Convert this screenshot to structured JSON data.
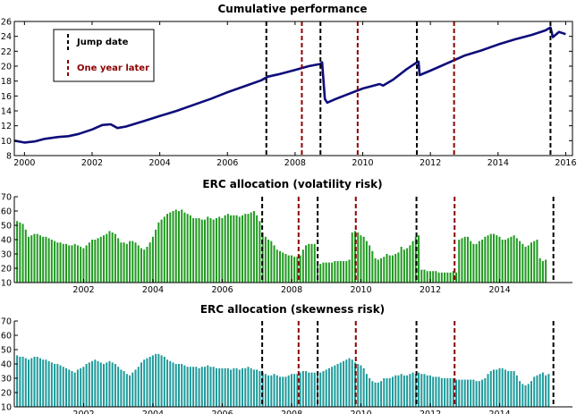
{
  "colors": {
    "performance_line": "#0d0d7a",
    "volatility_bars": "#1f9a1f",
    "skewness_bars": "#1d9a9a",
    "jump_line": "#000000",
    "later_line": "#8b0000"
  },
  "legend": {
    "jump_label": "Jump date",
    "later_label": "One year later"
  },
  "chart_data": [
    {
      "type": "line",
      "title": "Cumulative performance",
      "xlim": [
        1999.7,
        2016.2
      ],
      "ylim": [
        8,
        26
      ],
      "x_ticks": [
        2000,
        2002,
        2004,
        2006,
        2008,
        2010,
        2012,
        2014,
        2016
      ],
      "y_ticks": [
        8,
        10,
        12,
        14,
        16,
        18,
        20,
        22,
        24,
        26
      ],
      "grid": false,
      "legend_position": "top-left",
      "series": [
        {
          "points": [
            [
              1999.7,
              10.0
            ],
            [
              2000.0,
              9.75
            ],
            [
              2000.3,
              9.9
            ],
            [
              2000.6,
              10.25
            ],
            [
              2001.0,
              10.5
            ],
            [
              2001.3,
              10.6
            ],
            [
              2001.6,
              10.9
            ],
            [
              2002.0,
              11.5
            ],
            [
              2002.3,
              12.1
            ],
            [
              2002.55,
              12.2
            ],
            [
              2002.75,
              11.7
            ],
            [
              2003.0,
              11.9
            ],
            [
              2003.5,
              12.6
            ],
            [
              2004.0,
              13.3
            ],
            [
              2004.5,
              14.0
            ],
            [
              2005.0,
              14.8
            ],
            [
              2005.5,
              15.6
            ],
            [
              2006.0,
              16.5
            ],
            [
              2006.5,
              17.3
            ],
            [
              2007.0,
              18.1
            ],
            [
              2007.2,
              18.6
            ],
            [
              2007.5,
              18.9
            ],
            [
              2008.0,
              19.5
            ],
            [
              2008.4,
              20.0
            ],
            [
              2008.75,
              20.3
            ],
            [
              2008.8,
              20.5
            ],
            [
              2008.88,
              15.6
            ],
            [
              2008.95,
              15.1
            ],
            [
              2009.2,
              15.6
            ],
            [
              2009.6,
              16.3
            ],
            [
              2010.0,
              17.0
            ],
            [
              2010.5,
              17.6
            ],
            [
              2010.6,
              17.4
            ],
            [
              2010.9,
              18.2
            ],
            [
              2011.3,
              19.6
            ],
            [
              2011.6,
              20.5
            ],
            [
              2011.65,
              20.6
            ],
            [
              2011.68,
              18.8
            ],
            [
              2012.0,
              19.4
            ],
            [
              2012.5,
              20.4
            ],
            [
              2013.0,
              21.4
            ],
            [
              2013.5,
              22.1
            ],
            [
              2014.0,
              22.9
            ],
            [
              2014.5,
              23.6
            ],
            [
              2015.0,
              24.2
            ],
            [
              2015.4,
              24.8
            ],
            [
              2015.55,
              25.2
            ],
            [
              2015.62,
              23.9
            ],
            [
              2015.8,
              24.6
            ],
            [
              2016.0,
              24.3
            ]
          ]
        }
      ],
      "vlines": {
        "jump_dates": [
          2007.15,
          2008.75,
          2011.6,
          2015.55
        ],
        "one_year_later": [
          2008.2,
          2009.85,
          2012.7
        ]
      }
    },
    {
      "type": "bar",
      "title": "ERC allocation (volatility risk)",
      "xlim": [
        2000.0,
        2016.1
      ],
      "ylim": [
        10,
        70
      ],
      "x_ticks": [
        2002,
        2004,
        2006,
        2008,
        2010,
        2012,
        2014
      ],
      "y_ticks": [
        10,
        20,
        30,
        40,
        50,
        60,
        70
      ],
      "grid": false,
      "start": 2000.08,
      "step": 0.08333,
      "values": [
        53,
        52,
        51,
        47,
        42,
        43,
        44,
        44,
        43,
        42,
        42,
        41,
        40,
        39,
        38,
        38,
        37,
        37,
        36,
        36,
        37,
        36,
        35,
        34,
        36,
        38,
        40,
        40,
        41,
        42,
        43,
        44,
        46,
        45,
        44,
        41,
        38,
        38,
        37,
        39,
        39,
        38,
        36,
        34,
        33,
        35,
        38,
        42,
        47,
        52,
        54,
        56,
        58,
        59,
        60,
        61,
        60,
        61,
        59,
        58,
        57,
        55,
        55,
        55,
        54,
        54,
        56,
        55,
        54,
        55,
        56,
        55,
        57,
        58,
        57,
        57,
        57,
        56,
        57,
        58,
        58,
        59,
        60,
        57,
        53,
        45,
        42,
        40,
        39,
        36,
        33,
        32,
        31,
        30,
        29,
        29,
        28,
        28,
        29,
        33,
        36,
        37,
        37,
        37,
        24,
        23,
        24,
        24,
        24,
        24,
        25,
        25,
        25,
        25,
        25,
        26,
        45,
        46,
        45,
        43,
        42,
        39,
        36,
        32,
        27,
        26,
        27,
        28,
        30,
        29,
        29,
        30,
        31,
        35,
        33,
        34,
        36,
        39,
        42,
        43,
        19,
        19,
        18,
        18,
        18,
        18,
        17,
        17,
        17,
        17,
        17,
        18,
        17,
        40,
        41,
        42,
        42,
        39,
        37,
        37,
        39,
        40,
        42,
        43,
        44,
        44,
        43,
        42,
        40,
        40,
        41,
        42,
        43,
        41,
        39,
        37,
        35,
        36,
        38,
        39,
        40,
        27,
        25,
        26
      ]
    },
    {
      "type": "bar",
      "title": "ERC allocation (skewness risk)",
      "xlim": [
        2000.0,
        2016.1
      ],
      "ylim": [
        10,
        70
      ],
      "x_ticks": [
        2002,
        2004,
        2006,
        2008,
        2010,
        2012,
        2014
      ],
      "y_ticks": [
        10,
        20,
        30,
        40,
        50,
        60,
        70
      ],
      "grid": false,
      "start": 2000.08,
      "step": 0.08333,
      "values": [
        46,
        45,
        45,
        44,
        43,
        44,
        45,
        45,
        44,
        43,
        43,
        42,
        41,
        40,
        40,
        39,
        38,
        37,
        36,
        35,
        34,
        36,
        37,
        38,
        40,
        41,
        42,
        43,
        42,
        41,
        40,
        41,
        42,
        41,
        40,
        38,
        36,
        35,
        33,
        32,
        34,
        36,
        38,
        41,
        43,
        44,
        45,
        46,
        47,
        47,
        46,
        45,
        43,
        42,
        41,
        40,
        40,
        40,
        39,
        38,
        38,
        38,
        38,
        37,
        38,
        38,
        39,
        38,
        38,
        37,
        37,
        37,
        37,
        37,
        36,
        37,
        37,
        36,
        37,
        37,
        38,
        37,
        36,
        36,
        35,
        34,
        33,
        32,
        32,
        33,
        32,
        31,
        31,
        31,
        32,
        33,
        33,
        33,
        34,
        35,
        35,
        34,
        34,
        34,
        33,
        34,
        35,
        36,
        37,
        38,
        39,
        40,
        41,
        42,
        43,
        44,
        43,
        41,
        40,
        39,
        37,
        33,
        30,
        28,
        27,
        27,
        28,
        30,
        30,
        30,
        31,
        32,
        32,
        33,
        32,
        32,
        33,
        34,
        33,
        34,
        33,
        33,
        32,
        32,
        31,
        31,
        31,
        30,
        30,
        30,
        30,
        30,
        29,
        29,
        29,
        29,
        29,
        29,
        29,
        28,
        28,
        29,
        30,
        33,
        35,
        36,
        36,
        37,
        37,
        36,
        35,
        35,
        35,
        32,
        28,
        26,
        25,
        26,
        28,
        31,
        32,
        33,
        34,
        32,
        33
      ]
    }
  ]
}
